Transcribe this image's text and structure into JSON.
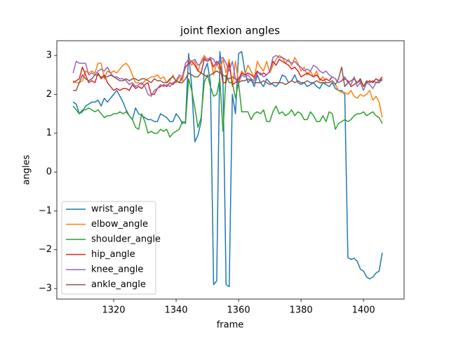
{
  "chart_data": {
    "type": "line",
    "title": "joint flexion angles",
    "x_label": "frame",
    "y_label": "angles",
    "x": [
      1307,
      1308,
      1309,
      1310,
      1311,
      1312,
      1313,
      1314,
      1315,
      1316,
      1317,
      1318,
      1319,
      1320,
      1321,
      1322,
      1323,
      1324,
      1325,
      1326,
      1327,
      1328,
      1329,
      1330,
      1331,
      1332,
      1333,
      1334,
      1335,
      1336,
      1337,
      1338,
      1339,
      1340,
      1341,
      1342,
      1343,
      1344,
      1345,
      1346,
      1347,
      1348,
      1349,
      1350,
      1351,
      1352,
      1353,
      1354,
      1355,
      1356,
      1357,
      1358,
      1359,
      1360,
      1361,
      1362,
      1363,
      1364,
      1365,
      1366,
      1367,
      1368,
      1369,
      1370,
      1371,
      1372,
      1373,
      1374,
      1375,
      1376,
      1377,
      1378,
      1379,
      1380,
      1381,
      1382,
      1383,
      1384,
      1385,
      1386,
      1387,
      1388,
      1389,
      1390,
      1391,
      1392,
      1393,
      1394,
      1395,
      1396,
      1397,
      1398,
      1399,
      1400,
      1401,
      1402,
      1403,
      1404,
      1405,
      1406
    ],
    "series": [
      {
        "name": "wrist_angle",
        "color": "#1f77b4",
        "values": [
          1.8,
          1.75,
          1.5,
          1.55,
          1.7,
          1.75,
          1.8,
          1.8,
          1.85,
          1.7,
          1.9,
          1.8,
          1.9,
          2.0,
          2.1,
          1.95,
          1.8,
          1.6,
          1.45,
          1.35,
          1.65,
          1.5,
          1.45,
          1.4,
          1.35,
          1.35,
          1.3,
          1.3,
          1.5,
          1.45,
          1.4,
          1.3,
          1.3,
          1.5,
          1.4,
          1.25,
          1.3,
          3.05,
          2.2,
          0.78,
          0.95,
          1.3,
          2.6,
          2.8,
          2.3,
          -2.9,
          -2.8,
          3.1,
          2.4,
          -2.9,
          -2.95,
          2.0,
          1.5,
          3.05,
          3.1,
          2.6,
          2.3,
          2.4,
          2.2,
          2.5,
          2.3,
          2.2,
          2.4,
          2.3,
          2.25,
          2.2,
          2.3,
          2.5,
          2.45,
          2.3,
          2.35,
          2.5,
          2.3,
          2.25,
          2.3,
          2.2,
          2.25,
          2.3,
          2.2,
          2.15,
          2.3,
          2.25,
          2.2,
          2.3,
          2.15,
          2.1,
          2.1,
          2.0,
          -2.2,
          -2.25,
          -2.22,
          -2.3,
          -2.5,
          -2.55,
          -2.7,
          -2.75,
          -2.7,
          -2.6,
          -2.55,
          -2.08
        ]
      },
      {
        "name": "elbow_angle",
        "color": "#ff7f0e",
        "values": [
          2.35,
          2.3,
          2.3,
          2.35,
          2.6,
          2.55,
          2.6,
          2.55,
          2.8,
          2.8,
          2.4,
          2.6,
          2.55,
          2.6,
          2.55,
          2.65,
          2.75,
          2.8,
          2.7,
          2.5,
          2.3,
          2.3,
          2.25,
          2.35,
          2.4,
          2.45,
          2.45,
          2.5,
          2.4,
          2.45,
          2.3,
          2.35,
          2.5,
          2.3,
          2.45,
          2.35,
          2.8,
          2.9,
          2.75,
          2.85,
          2.6,
          2.85,
          3.0,
          2.9,
          2.95,
          2.5,
          2.8,
          2.6,
          2.9,
          2.55,
          2.9,
          2.2,
          2.85,
          2.3,
          2.6,
          2.5,
          2.75,
          2.6,
          2.4,
          2.85,
          2.7,
          2.6,
          2.85,
          2.55,
          2.75,
          2.9,
          3.0,
          2.95,
          2.8,
          2.9,
          2.75,
          2.95,
          2.8,
          2.6,
          2.7,
          2.5,
          2.6,
          2.45,
          2.6,
          2.35,
          2.45,
          2.3,
          2.3,
          2.35,
          2.25,
          2.1,
          2.05,
          2.05,
          2.0,
          2.1,
          1.95,
          1.9,
          2.0,
          1.95,
          2.0,
          2.1,
          1.85,
          1.95,
          1.8,
          1.4
        ]
      },
      {
        "name": "shoulder_angle",
        "color": "#2ca02c",
        "values": [
          1.7,
          1.6,
          1.5,
          1.6,
          1.6,
          1.65,
          1.6,
          1.55,
          1.6,
          1.5,
          1.4,
          1.45,
          1.45,
          1.5,
          1.5,
          1.55,
          1.5,
          1.55,
          1.45,
          1.35,
          1.15,
          1.1,
          1.5,
          1.3,
          1.0,
          1.05,
          1.0,
          1.0,
          1.1,
          1.05,
          1.1,
          0.9,
          1.0,
          1.05,
          1.1,
          1.3,
          1.25,
          2.4,
          2.1,
          1.65,
          1.15,
          1.4,
          2.3,
          2.5,
          2.2,
          1.95,
          2.0,
          2.4,
          1.05,
          2.5,
          2.3,
          2.3,
          1.9,
          2.3,
          1.55,
          1.55,
          1.55,
          1.35,
          1.5,
          1.55,
          1.5,
          1.6,
          1.3,
          1.3,
          1.55,
          1.7,
          1.5,
          1.55,
          1.45,
          1.5,
          1.6,
          1.45,
          1.55,
          1.5,
          1.35,
          1.35,
          1.55,
          1.45,
          1.3,
          1.3,
          1.45,
          1.3,
          1.55,
          1.5,
          1.1,
          1.25,
          1.3,
          1.35,
          1.3,
          1.35,
          1.45,
          1.5,
          1.5,
          1.55,
          1.45,
          1.5,
          1.55,
          1.45,
          1.4,
          1.25
        ]
      },
      {
        "name": "hip_angle",
        "color": "#d62728",
        "values": [
          2.3,
          2.35,
          2.4,
          2.7,
          2.5,
          2.3,
          2.35,
          2.3,
          2.55,
          2.4,
          2.5,
          2.3,
          2.2,
          2.1,
          2.15,
          2.1,
          2.15,
          2.15,
          2.1,
          2.25,
          2.15,
          2.2,
          2.15,
          2.25,
          2.3,
          2.0,
          2.0,
          2.15,
          2.2,
          2.25,
          2.2,
          2.3,
          2.25,
          2.35,
          2.3,
          2.45,
          2.7,
          2.8,
          2.85,
          2.75,
          2.6,
          2.55,
          2.9,
          2.85,
          2.9,
          2.7,
          2.85,
          2.75,
          2.3,
          2.3,
          2.8,
          2.25,
          2.3,
          2.4,
          2.55,
          2.5,
          2.55,
          2.5,
          2.45,
          2.6,
          2.5,
          2.55,
          2.5,
          2.6,
          2.85,
          2.75,
          2.9,
          2.85,
          2.8,
          2.75,
          2.65,
          2.7,
          2.6,
          2.45,
          2.5,
          2.55,
          2.5,
          2.45,
          2.5,
          2.4,
          2.35,
          2.4,
          2.35,
          2.45,
          2.4,
          2.3,
          2.35,
          2.4,
          2.35,
          2.2,
          2.25,
          2.3,
          2.4,
          2.2,
          2.3,
          2.35,
          2.3,
          2.4,
          2.35,
          2.45
        ]
      },
      {
        "name": "knee_angle",
        "color": "#9467bd",
        "values": [
          2.55,
          2.85,
          2.8,
          2.8,
          2.8,
          2.5,
          2.55,
          2.5,
          2.6,
          2.65,
          2.6,
          2.7,
          2.55,
          2.45,
          2.45,
          2.4,
          2.4,
          2.35,
          2.25,
          2.3,
          2.2,
          2.25,
          2.3,
          2.2,
          2.0,
          1.95,
          2.1,
          2.15,
          2.25,
          2.2,
          2.25,
          2.2,
          2.3,
          2.35,
          2.5,
          2.45,
          2.8,
          2.9,
          2.85,
          2.9,
          2.75,
          2.8,
          2.95,
          2.85,
          2.95,
          2.9,
          2.75,
          2.9,
          2.95,
          2.8,
          2.6,
          2.85,
          2.4,
          2.3,
          2.5,
          2.45,
          2.5,
          2.4,
          2.35,
          2.55,
          2.55,
          2.45,
          2.5,
          2.6,
          2.95,
          3.0,
          2.95,
          2.95,
          2.9,
          2.85,
          2.8,
          2.85,
          2.75,
          2.7,
          2.6,
          2.65,
          2.6,
          2.75,
          2.7,
          2.6,
          2.55,
          2.6,
          2.5,
          2.45,
          2.4,
          2.3,
          2.35,
          2.45,
          2.3,
          2.25,
          2.45,
          2.2,
          2.3,
          2.1,
          2.3,
          2.25,
          2.15,
          2.3,
          2.35,
          2.35
        ]
      },
      {
        "name": "ankle_angle",
        "color": "#8c564b",
        "values": [
          2.1,
          2.1,
          2.3,
          2.5,
          2.4,
          2.35,
          2.4,
          2.5,
          2.5,
          2.45,
          2.45,
          2.45,
          2.5,
          2.45,
          2.4,
          2.35,
          2.35,
          2.4,
          2.35,
          2.4,
          2.4,
          2.35,
          2.4,
          2.4,
          2.35,
          2.3,
          2.4,
          2.35,
          2.35,
          2.3,
          2.3,
          2.4,
          2.45,
          2.35,
          2.3,
          2.3,
          2.4,
          2.55,
          2.5,
          2.45,
          2.45,
          2.55,
          2.5,
          2.45,
          2.5,
          2.55,
          2.6,
          2.55,
          2.5,
          2.45,
          2.4,
          2.45,
          2.4,
          2.3,
          2.35,
          2.35,
          2.4,
          2.35,
          2.3,
          2.3,
          2.3,
          2.35,
          2.3,
          2.25,
          2.3,
          2.3,
          2.3,
          2.3,
          2.25,
          2.3,
          2.35,
          2.3,
          2.35,
          2.3,
          2.3,
          2.35,
          2.3,
          2.3,
          2.35,
          2.3,
          2.3,
          2.3,
          2.3,
          2.35,
          2.25,
          2.4,
          2.7,
          2.2,
          2.3,
          2.35,
          2.4,
          2.3,
          2.35,
          2.2,
          2.35,
          2.3,
          2.35,
          2.3,
          2.3,
          2.4
        ]
      }
    ],
    "xlim": [
      1301.8,
      1413.0
    ],
    "ylim": [
      -3.27,
      3.38
    ],
    "xticks": [
      1320,
      1340,
      1360,
      1380,
      1400
    ],
    "yticks": [
      {
        "value": -3,
        "label": "−3"
      },
      {
        "value": -2,
        "label": "−2"
      },
      {
        "value": -1,
        "label": "−1"
      },
      0,
      1,
      2,
      3
    ],
    "legend": "lower left"
  }
}
